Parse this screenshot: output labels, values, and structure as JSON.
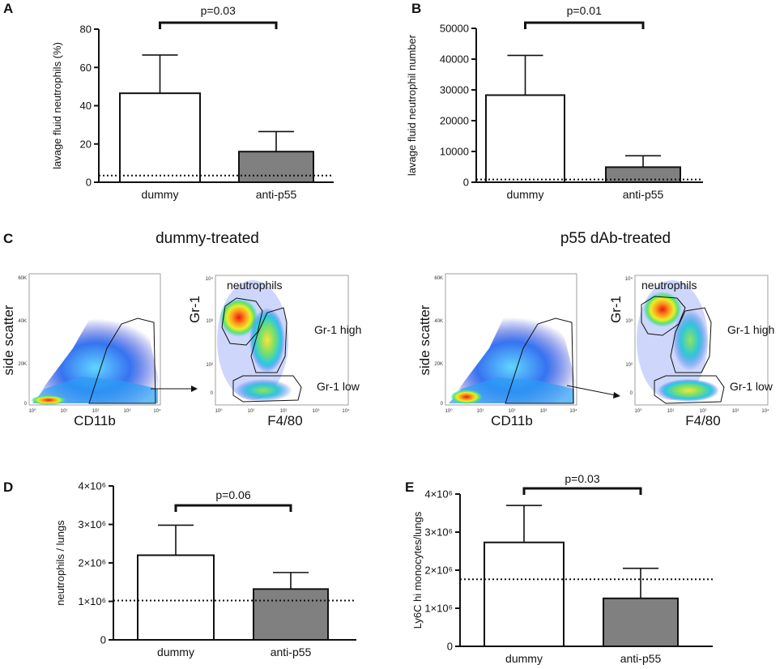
{
  "chart_data": [
    {
      "panel": "A",
      "type": "bar",
      "categories": [
        "dummy",
        "anti-p55"
      ],
      "values": [
        46.5,
        16
      ],
      "errors": [
        20,
        10.5
      ],
      "colors": [
        "#ffffff",
        "#808080"
      ],
      "baseline": 3.5,
      "ylabel": "lavage fluid neutrophils (%)",
      "ylim": [
        0,
        80
      ],
      "ticks": [
        0,
        20,
        40,
        60,
        80
      ],
      "tick_labels": [
        "0",
        "20",
        "40",
        "60",
        "80"
      ],
      "pvalue": "p=0.03"
    },
    {
      "panel": "B",
      "type": "bar",
      "categories": [
        "dummy",
        "anti-p55"
      ],
      "values": [
        28300,
        4900
      ],
      "errors": [
        12900,
        3700
      ],
      "colors": [
        "#ffffff",
        "#808080"
      ],
      "baseline": 900,
      "ylabel": "lavage fluid neutrophil number",
      "ylim": [
        0,
        50000
      ],
      "ticks": [
        0,
        10000,
        20000,
        30000,
        40000,
        50000
      ],
      "tick_labels": [
        "0",
        "10000",
        "20000",
        "30000",
        "40000",
        "50000"
      ],
      "pvalue": "p=0.01"
    },
    {
      "panel": "D",
      "type": "bar",
      "categories": [
        "dummy",
        "anti-p55"
      ],
      "values": [
        2200000,
        1320000
      ],
      "errors": [
        780000,
        430000
      ],
      "colors": [
        "#ffffff",
        "#808080"
      ],
      "baseline": 1020000,
      "ylabel": "neutrophils / lungs",
      "ylim": [
        0,
        4000000
      ],
      "ticks": [
        0,
        1000000,
        2000000,
        3000000,
        4000000
      ],
      "tick_labels": [
        "0",
        "1×10⁶",
        "2×10⁶",
        "3×10⁶",
        "4×10⁶"
      ],
      "pvalue": "p=0.06"
    },
    {
      "panel": "E",
      "type": "bar",
      "categories": [
        "dummy",
        "anti-p55"
      ],
      "values": [
        2730000,
        1260000
      ],
      "errors": [
        970000,
        790000
      ],
      "colors": [
        "#ffffff",
        "#808080"
      ],
      "baseline": 1760000,
      "ylabel": "Ly6C hi monocytes/lungs",
      "ylim": [
        0,
        4000000
      ],
      "ticks": [
        0,
        1000000,
        2000000,
        3000000,
        4000000
      ],
      "tick_labels": [
        "0",
        "1×10⁶",
        "2×10⁶",
        "3×10⁶",
        "4×10⁶"
      ],
      "pvalue": "p=0.03"
    }
  ],
  "flow": {
    "panel": "C",
    "groups": [
      {
        "title": "dummy-treated",
        "scatter_xlabel": "CD11b",
        "scatter_ylabel": "side scatter",
        "gate_xlabel": "F4/80",
        "gate_ylabel": "Gr-1",
        "gates": [
          "neutrophils",
          "Gr-1 high",
          "Gr-1 low"
        ],
        "ssc_ticks": [
          "60K",
          "40K",
          "20K",
          "0"
        ],
        "x_ticks": [
          "10⁰",
          "10¹",
          "10²",
          "10³",
          "10⁴"
        ],
        "gr1_ticks": [
          "10⁴",
          "10³",
          "10²",
          "0"
        ]
      },
      {
        "title": "p55 dAb-treated",
        "scatter_xlabel": "CD11b",
        "scatter_ylabel": "side scatter",
        "gate_xlabel": "F4/80",
        "gate_ylabel": "Gr-1",
        "gates": [
          "neutrophils",
          "Gr-1 high",
          "Gr-1 low"
        ],
        "ssc_ticks": [
          "60K",
          "40K",
          "20K",
          "0"
        ],
        "x_ticks": [
          "10⁰",
          "10¹",
          "10²",
          "10³",
          "10⁴"
        ],
        "gr1_ticks": [
          "10⁴",
          "10³",
          "10²",
          "0"
        ]
      }
    ]
  }
}
